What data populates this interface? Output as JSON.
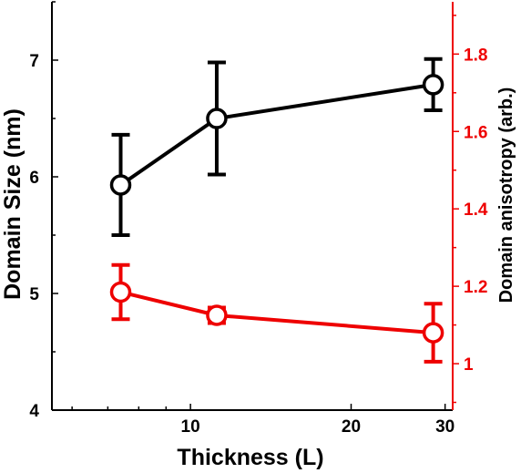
{
  "chart_data": {
    "type": "line",
    "xlabel": "Thickness (L)",
    "x_scale": "log",
    "xlim": [
      5.5,
      31
    ],
    "x_ticks": [
      10,
      20,
      30
    ],
    "ylabel_left": "Domain Size (nm)",
    "ylim_left": [
      4,
      7.5
    ],
    "y_ticks_left": [
      4,
      5,
      6,
      7
    ],
    "ylabel_right": "Domain anisotropy (arb.)",
    "ylim_right": [
      0.88,
      1.935
    ],
    "y_ticks_right": [
      1,
      1.2,
      1.4,
      1.6,
      1.8
    ],
    "series": [
      {
        "axis": "left",
        "color": "#000000",
        "marker": "open-circle",
        "x": [
          7.4,
          11.2,
          28.5
        ],
        "y": [
          5.93,
          6.5,
          6.79
        ],
        "err_low": [
          5.5,
          6.02,
          6.57
        ],
        "err_high": [
          6.36,
          6.98,
          7.01
        ]
      },
      {
        "axis": "right",
        "color": "#ee0000",
        "marker": "open-circle",
        "x": [
          7.4,
          11.2,
          28.5
        ],
        "y": [
          1.185,
          1.125,
          1.08
        ],
        "err_low": [
          1.115,
          1.105,
          1.005
        ],
        "err_high": [
          1.255,
          1.145,
          1.155
        ]
      }
    ],
    "colors": {
      "left_axis": "#000000",
      "right_axis": "#ee0000"
    }
  }
}
